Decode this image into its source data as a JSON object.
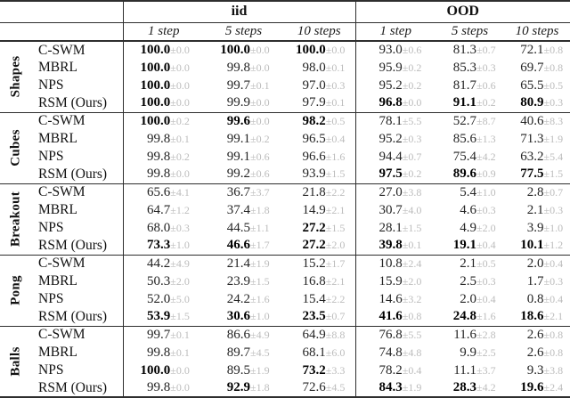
{
  "page": {
    "background": "#ffffff",
    "text_color": "#1c1c1c",
    "muted_error_color": "#bcbcbc",
    "rule_color": "#2e2e2e"
  },
  "table": {
    "pm_sign": "±",
    "headers": {
      "iid": "iid",
      "ood": "OOD"
    },
    "step_headers": [
      "1 step",
      "5 steps",
      "10 steps"
    ],
    "column_order": [
      "iid 1 step",
      "iid 5 steps",
      "iid 10 steps",
      "OOD 1 step",
      "OOD 5 steps",
      "OOD 10 steps"
    ],
    "groups": [
      {
        "label": "Shapes",
        "rows": [
          {
            "method": "C-SWM",
            "cells": [
              {
                "v": "100.0",
                "e": "0.0",
                "bold": true
              },
              {
                "v": "100.0",
                "e": "0.0",
                "bold": true
              },
              {
                "v": "100.0",
                "e": "0.0",
                "bold": true
              },
              {
                "v": "93.0",
                "e": "0.6",
                "bold": false
              },
              {
                "v": "81.3",
                "e": "0.7",
                "bold": false
              },
              {
                "v": "72.1",
                "e": "0.8",
                "bold": false
              }
            ]
          },
          {
            "method": "MBRL",
            "cells": [
              {
                "v": "100.0",
                "e": "0.0",
                "bold": true
              },
              {
                "v": "99.8",
                "e": "0.0",
                "bold": false
              },
              {
                "v": "98.0",
                "e": "0.1",
                "bold": false
              },
              {
                "v": "95.9",
                "e": "0.2",
                "bold": false
              },
              {
                "v": "85.3",
                "e": "0.3",
                "bold": false
              },
              {
                "v": "69.7",
                "e": "0.8",
                "bold": false
              }
            ]
          },
          {
            "method": "NPS",
            "cells": [
              {
                "v": "100.0",
                "e": "0.0",
                "bold": true
              },
              {
                "v": "99.7",
                "e": "0.1",
                "bold": false
              },
              {
                "v": "97.0",
                "e": "0.3",
                "bold": false
              },
              {
                "v": "95.2",
                "e": "0.2",
                "bold": false
              },
              {
                "v": "81.7",
                "e": "0.6",
                "bold": false
              },
              {
                "v": "65.5",
                "e": "0.5",
                "bold": false
              }
            ]
          },
          {
            "method": "RSM (Ours)",
            "cells": [
              {
                "v": "100.0",
                "e": "0.0",
                "bold": true
              },
              {
                "v": "99.9",
                "e": "0.0",
                "bold": false
              },
              {
                "v": "97.9",
                "e": "0.1",
                "bold": false
              },
              {
                "v": "96.8",
                "e": "0.0",
                "bold": true
              },
              {
                "v": "91.1",
                "e": "0.2",
                "bold": true
              },
              {
                "v": "80.9",
                "e": "0.3",
                "bold": true
              }
            ]
          }
        ]
      },
      {
        "label": "Cubes",
        "rows": [
          {
            "method": "C-SWM",
            "cells": [
              {
                "v": "100.0",
                "e": "0.2",
                "bold": true
              },
              {
                "v": "99.6",
                "e": "0.0",
                "bold": true
              },
              {
                "v": "98.2",
                "e": "0.5",
                "bold": true
              },
              {
                "v": "78.1",
                "e": "5.5",
                "bold": false
              },
              {
                "v": "52.7",
                "e": "8.7",
                "bold": false
              },
              {
                "v": "40.6",
                "e": "8.3",
                "bold": false
              }
            ]
          },
          {
            "method": "MBRL",
            "cells": [
              {
                "v": "99.8",
                "e": "0.1",
                "bold": false
              },
              {
                "v": "99.1",
                "e": "0.2",
                "bold": false
              },
              {
                "v": "96.5",
                "e": "0.4",
                "bold": false
              },
              {
                "v": "95.2",
                "e": "0.3",
                "bold": false
              },
              {
                "v": "85.6",
                "e": "1.3",
                "bold": false
              },
              {
                "v": "71.3",
                "e": "1.9",
                "bold": false
              }
            ]
          },
          {
            "method": "NPS",
            "cells": [
              {
                "v": "99.8",
                "e": "0.2",
                "bold": false
              },
              {
                "v": "99.1",
                "e": "0.6",
                "bold": false
              },
              {
                "v": "96.6",
                "e": "1.6",
                "bold": false
              },
              {
                "v": "94.4",
                "e": "0.7",
                "bold": false
              },
              {
                "v": "75.4",
                "e": "4.2",
                "bold": false
              },
              {
                "v": "63.2",
                "e": "5.4",
                "bold": false
              }
            ]
          },
          {
            "method": "RSM (Ours)",
            "cells": [
              {
                "v": "99.8",
                "e": "0.0",
                "bold": false
              },
              {
                "v": "99.2",
                "e": "0.6",
                "bold": false
              },
              {
                "v": "93.9",
                "e": "1.5",
                "bold": false
              },
              {
                "v": "97.5",
                "e": "0.2",
                "bold": true
              },
              {
                "v": "89.6",
                "e": "0.9",
                "bold": true
              },
              {
                "v": "77.5",
                "e": "1.5",
                "bold": true
              }
            ]
          }
        ]
      },
      {
        "label": "Breakout",
        "rows": [
          {
            "method": "C-SWM",
            "cells": [
              {
                "v": "65.6",
                "e": "4.1",
                "bold": false
              },
              {
                "v": "36.7",
                "e": "3.7",
                "bold": false
              },
              {
                "v": "21.8",
                "e": "2.2",
                "bold": false
              },
              {
                "v": "27.0",
                "e": "3.8",
                "bold": false
              },
              {
                "v": "5.4",
                "e": "1.0",
                "bold": false
              },
              {
                "v": "2.8",
                "e": "0.7",
                "bold": false
              }
            ]
          },
          {
            "method": "MBRL",
            "cells": [
              {
                "v": "64.7",
                "e": "1.2",
                "bold": false
              },
              {
                "v": "37.4",
                "e": "1.8",
                "bold": false
              },
              {
                "v": "14.9",
                "e": "2.1",
                "bold": false
              },
              {
                "v": "30.7",
                "e": "4.0",
                "bold": false
              },
              {
                "v": "4.6",
                "e": "0.3",
                "bold": false
              },
              {
                "v": "2.1",
                "e": "0.3",
                "bold": false
              }
            ]
          },
          {
            "method": "NPS",
            "cells": [
              {
                "v": "68.0",
                "e": "0.3",
                "bold": false
              },
              {
                "v": "44.5",
                "e": "1.1",
                "bold": false
              },
              {
                "v": "27.2",
                "e": "1.5",
                "bold": true
              },
              {
                "v": "28.1",
                "e": "1.5",
                "bold": false
              },
              {
                "v": "4.9",
                "e": "2.0",
                "bold": false
              },
              {
                "v": "3.9",
                "e": "1.0",
                "bold": false
              }
            ]
          },
          {
            "method": "RSM (Ours)",
            "cells": [
              {
                "v": "73.3",
                "e": "1.0",
                "bold": true
              },
              {
                "v": "46.6",
                "e": "1.7",
                "bold": true
              },
              {
                "v": "27.2",
                "e": "2.0",
                "bold": true
              },
              {
                "v": "39.8",
                "e": "0.1",
                "bold": true
              },
              {
                "v": "19.1",
                "e": "0.4",
                "bold": true
              },
              {
                "v": "10.1",
                "e": "1.2",
                "bold": true
              }
            ]
          }
        ]
      },
      {
        "label": "Pong",
        "rows": [
          {
            "method": "C-SWM",
            "cells": [
              {
                "v": "44.2",
                "e": "4.9",
                "bold": false
              },
              {
                "v": "21.4",
                "e": "1.9",
                "bold": false
              },
              {
                "v": "15.2",
                "e": "1.7",
                "bold": false
              },
              {
                "v": "10.8",
                "e": "2.4",
                "bold": false
              },
              {
                "v": "2.1",
                "e": "0.5",
                "bold": false
              },
              {
                "v": "2.0",
                "e": "0.4",
                "bold": false
              }
            ]
          },
          {
            "method": "MBRL",
            "cells": [
              {
                "v": "50.3",
                "e": "2.0",
                "bold": false
              },
              {
                "v": "23.9",
                "e": "1.5",
                "bold": false
              },
              {
                "v": "16.8",
                "e": "2.1",
                "bold": false
              },
              {
                "v": "15.9",
                "e": "2.0",
                "bold": false
              },
              {
                "v": "2.5",
                "e": "0.3",
                "bold": false
              },
              {
                "v": "1.7",
                "e": "0.3",
                "bold": false
              }
            ]
          },
          {
            "method": "NPS",
            "cells": [
              {
                "v": "52.0",
                "e": "5.0",
                "bold": false
              },
              {
                "v": "24.2",
                "e": "1.6",
                "bold": false
              },
              {
                "v": "15.4",
                "e": "2.2",
                "bold": false
              },
              {
                "v": "14.6",
                "e": "3.2",
                "bold": false
              },
              {
                "v": "2.0",
                "e": "0.4",
                "bold": false
              },
              {
                "v": "0.8",
                "e": "0.4",
                "bold": false
              }
            ]
          },
          {
            "method": "RSM (Ours)",
            "cells": [
              {
                "v": "53.9",
                "e": "1.5",
                "bold": true
              },
              {
                "v": "30.6",
                "e": "1.0",
                "bold": true
              },
              {
                "v": "23.5",
                "e": "0.7",
                "bold": true
              },
              {
                "v": "41.6",
                "e": "0.8",
                "bold": true
              },
              {
                "v": "24.8",
                "e": "1.6",
                "bold": true
              },
              {
                "v": "18.6",
                "e": "2.1",
                "bold": true
              }
            ]
          }
        ]
      },
      {
        "label": "Balls",
        "rows": [
          {
            "method": "C-SWM",
            "cells": [
              {
                "v": "99.7",
                "e": "0.1",
                "bold": false
              },
              {
                "v": "86.6",
                "e": "4.9",
                "bold": false
              },
              {
                "v": "64.9",
                "e": "8.8",
                "bold": false
              },
              {
                "v": "76.8",
                "e": "5.5",
                "bold": false
              },
              {
                "v": "11.6",
                "e": "2.8",
                "bold": false
              },
              {
                "v": "2.6",
                "e": "0.8",
                "bold": false
              }
            ]
          },
          {
            "method": "MBRL",
            "cells": [
              {
                "v": "99.8",
                "e": "0.1",
                "bold": false
              },
              {
                "v": "89.7",
                "e": "4.5",
                "bold": false
              },
              {
                "v": "68.1",
                "e": "6.0",
                "bold": false
              },
              {
                "v": "74.8",
                "e": "4.8",
                "bold": false
              },
              {
                "v": "9.9",
                "e": "2.5",
                "bold": false
              },
              {
                "v": "2.6",
                "e": "0.8",
                "bold": false
              }
            ]
          },
          {
            "method": "NPS",
            "cells": [
              {
                "v": "100.0",
                "e": "0.0",
                "bold": true
              },
              {
                "v": "89.5",
                "e": "1.9",
                "bold": false
              },
              {
                "v": "73.2",
                "e": "3.3",
                "bold": true
              },
              {
                "v": "78.2",
                "e": "0.4",
                "bold": false
              },
              {
                "v": "11.1",
                "e": "3.7",
                "bold": false
              },
              {
                "v": "9.3",
                "e": "3.8",
                "bold": false
              }
            ]
          },
          {
            "method": "RSM (Ours)",
            "cells": [
              {
                "v": "99.8",
                "e": "0.0",
                "bold": false
              },
              {
                "v": "92.9",
                "e": "1.8",
                "bold": true
              },
              {
                "v": "72.6",
                "e": "4.5",
                "bold": false
              },
              {
                "v": "84.3",
                "e": "1.9",
                "bold": true
              },
              {
                "v": "28.3",
                "e": "4.2",
                "bold": true
              },
              {
                "v": "19.6",
                "e": "2.4",
                "bold": true
              }
            ]
          }
        ]
      }
    ]
  }
}
